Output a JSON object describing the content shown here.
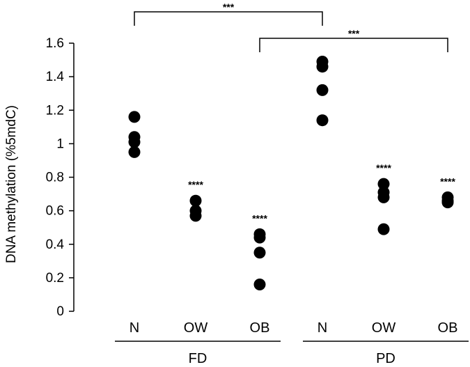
{
  "chart_data": {
    "type": "scatter",
    "ylabel": "DNA methylation (%5mdC)",
    "ylim": [
      0,
      1.6
    ],
    "yticks": [
      0,
      0.2,
      0.4,
      0.6,
      0.8,
      1,
      1.2,
      1.4,
      1.6
    ],
    "ytick_labels": [
      "0",
      "0.2",
      "0.4",
      "0.6",
      "0.8",
      "1",
      "1.2",
      "1.4",
      "1.6"
    ],
    "grid": false,
    "categories": [
      "N",
      "OW",
      "OB",
      "N",
      "OW",
      "OB"
    ],
    "groups": [
      {
        "label": "FD",
        "categories": [
          0,
          1,
          2
        ]
      },
      {
        "label": "PD",
        "categories": [
          3,
          4,
          5
        ]
      }
    ],
    "series": [
      {
        "category_index": 0,
        "values": [
          1.16,
          1.04,
          1.01,
          0.95
        ],
        "annotation": ""
      },
      {
        "category_index": 1,
        "values": [
          0.66,
          0.6,
          0.57
        ],
        "annotation": "****"
      },
      {
        "category_index": 2,
        "values": [
          0.46,
          0.44,
          0.35,
          0.16
        ],
        "annotation": "****"
      },
      {
        "category_index": 3,
        "values": [
          1.49,
          1.46,
          1.32,
          1.14
        ],
        "annotation": ""
      },
      {
        "category_index": 4,
        "values": [
          0.76,
          0.71,
          0.68,
          0.49
        ],
        "annotation": "****"
      },
      {
        "category_index": 5,
        "values": [
          0.68,
          0.66,
          0.65
        ],
        "annotation": "****"
      }
    ],
    "brackets": [
      {
        "from": 0,
        "to": 3,
        "label": "***"
      },
      {
        "from": 2,
        "to": 5,
        "label": "***"
      }
    ]
  }
}
